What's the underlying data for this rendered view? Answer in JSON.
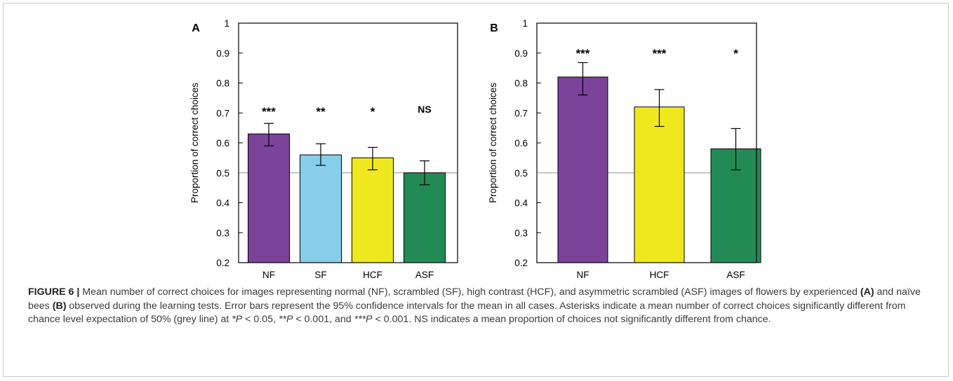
{
  "chart_data": [
    {
      "panel": "A",
      "type": "bar",
      "ylabel": "Proportion of correct choices",
      "ylim": [
        0.2,
        1
      ],
      "yticks": [
        "0.2",
        "0.3",
        "0.4",
        "0.5",
        "0.6",
        "0.7",
        "0.8",
        "0.9",
        "1"
      ],
      "categories": [
        "NF",
        "SF",
        "HCF",
        "ASF"
      ],
      "values": [
        0.63,
        0.56,
        0.55,
        0.5
      ],
      "ci_low": [
        0.59,
        0.525,
        0.51,
        0.46
      ],
      "ci_high": [
        0.665,
        0.597,
        0.585,
        0.54
      ],
      "significance": [
        "***",
        "**",
        "*",
        "NS"
      ],
      "colors": [
        "#7b439a",
        "#87ceeb",
        "#f0e81e",
        "#228b55"
      ],
      "reference_line": 0.5,
      "grid": false
    },
    {
      "panel": "B",
      "type": "bar",
      "ylabel": "Proportion of correct choices",
      "ylim": [
        0.2,
        1
      ],
      "yticks": [
        "0.2",
        "0.3",
        "0.4",
        "0.5",
        "0.6",
        "0.7",
        "0.8",
        "0.9",
        "1"
      ],
      "categories": [
        "NF",
        "HCF",
        "ASF"
      ],
      "values": [
        0.82,
        0.72,
        0.58
      ],
      "ci_low": [
        0.76,
        0.655,
        0.51
      ],
      "ci_high": [
        0.868,
        0.778,
        0.648
      ],
      "significance": [
        "***",
        "***",
        "*"
      ],
      "colors": [
        "#7b439a",
        "#f0e81e",
        "#228b55"
      ],
      "reference_line": 0.5,
      "grid": false
    }
  ],
  "caption": {
    "figure_label": "FIGURE 6 |",
    "t1": " Mean number of correct choices for images representing normal (NF), scrambled (SF), high contrast (HCF), and asymmetric scrambled (ASF) images of flowers by experienced ",
    "a": "(A)",
    "t2": " and naïve bees ",
    "b": "(B)",
    "t3": " observed during the learning tests. Error bars represent the 95% confidence intervals for the mean in all cases. Asterisks indicate a mean number of correct choices significantly different from chance level expectation of 50% (grey line) at ",
    "s1": "*",
    "p1": "P",
    "t4": " < 0.05, ",
    "s2": "**",
    "p2": "P",
    "t5": " < 0.001, and ",
    "s3": "***",
    "p3": "P",
    "t6": " < 0.001. NS indicates a mean proportion of choices not significantly different from chance."
  },
  "colors": {
    "reference_line": "#b5b5b5",
    "caption_text": "#3b3b3b"
  }
}
